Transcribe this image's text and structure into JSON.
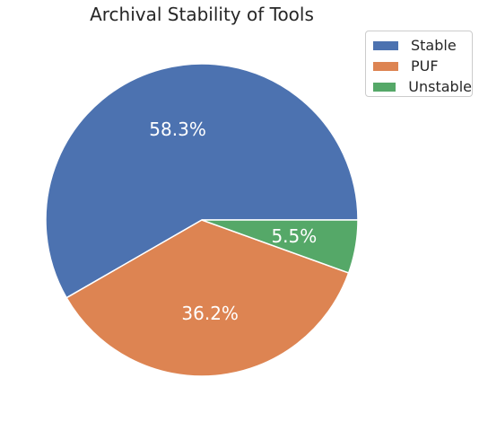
{
  "chart_data": {
    "type": "pie",
    "title": "Archival Stability of Tools",
    "categories": [
      "Stable",
      "PUF",
      "Unstable"
    ],
    "values": [
      58.3,
      36.2,
      5.5
    ],
    "labels": [
      "58.3%",
      "36.2%",
      "5.5%"
    ],
    "colors": [
      "#4c72b0",
      "#dd8452",
      "#55a868"
    ],
    "start_angle_deg": 0,
    "direction": "counterclockwise",
    "legend_position": "top-right"
  }
}
